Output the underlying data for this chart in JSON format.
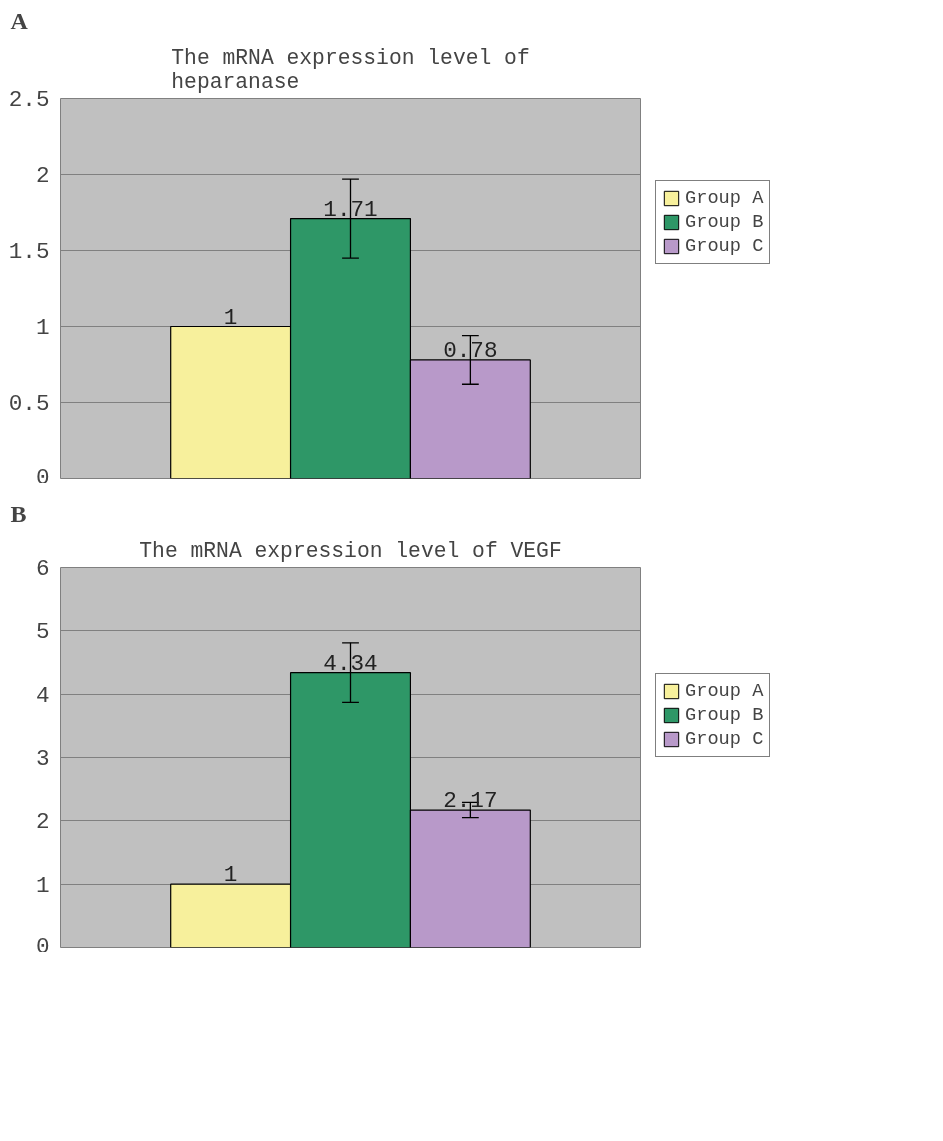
{
  "chart_data": [
    {
      "type": "bar",
      "title": "The mRNA expression level of heparanase",
      "annotations": [
        "A"
      ],
      "categories": [
        null
      ],
      "ylim": [
        0,
        2.5
      ],
      "yticks": [
        0,
        0.5,
        1,
        1.5,
        2,
        2.5
      ],
      "grid": "y",
      "legend": "right",
      "tick_labels": "y",
      "data_labels": true,
      "series": [
        {
          "name": "Group A",
          "color": "#f7f09c",
          "values": [
            1
          ]
        },
        {
          "name": "Group B",
          "color": "#2e9767",
          "values": [
            1.71
          ],
          "errors": [
            0.26
          ]
        },
        {
          "name": "Group C",
          "color": "#b899c9",
          "values": [
            0.78
          ],
          "errors": [
            0.16
          ]
        }
      ]
    },
    {
      "type": "bar",
      "title": "The mRNA expression level of VEGF",
      "annotations": [
        "B"
      ],
      "categories": [
        null
      ],
      "ylim": [
        0,
        6
      ],
      "yticks": [
        0,
        1,
        2,
        3,
        4,
        5,
        6
      ],
      "grid": "y",
      "legend": "right",
      "tick_labels": "y",
      "data_labels": true,
      "series": [
        {
          "name": "Group A",
          "color": "#f7f09c",
          "values": [
            1
          ]
        },
        {
          "name": "Group B",
          "color": "#2e9767",
          "values": [
            4.34
          ],
          "errors": [
            0.47
          ]
        },
        {
          "name": "Group C",
          "color": "#b899c9",
          "values": [
            2.17
          ],
          "errors": [
            0.12
          ]
        }
      ]
    }
  ]
}
